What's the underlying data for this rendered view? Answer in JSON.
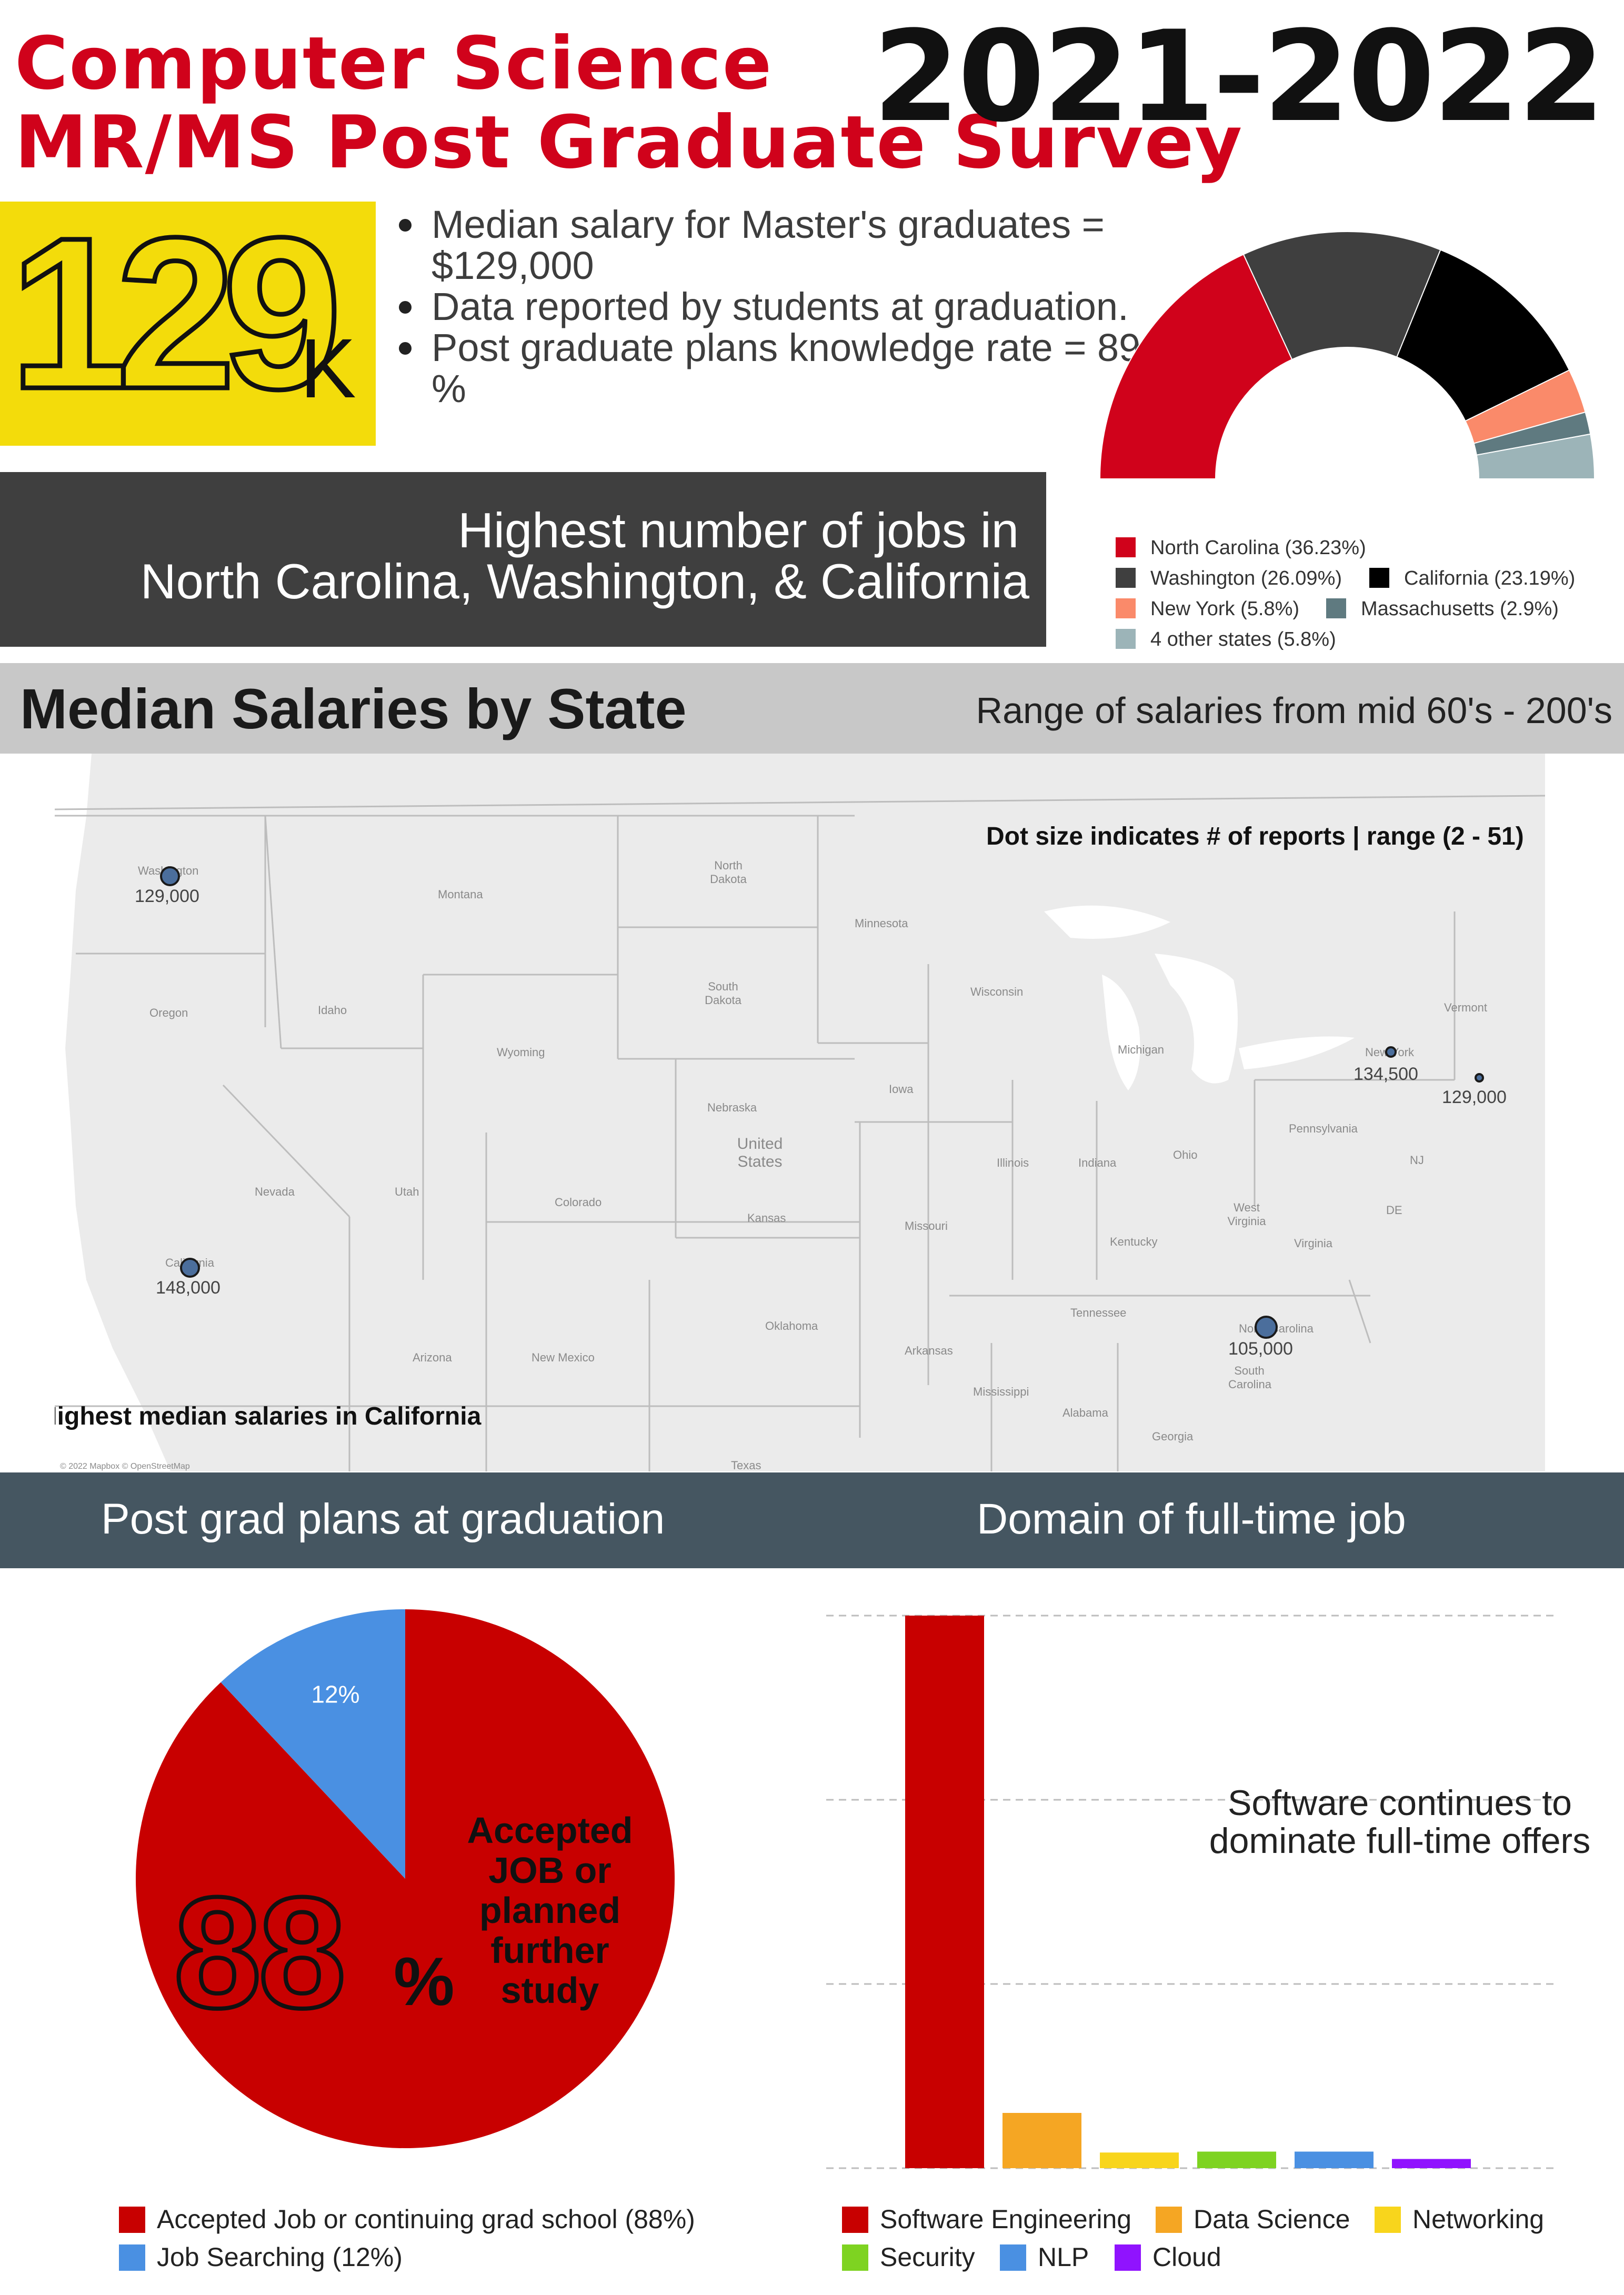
{
  "header": {
    "title_line1": "Computer Science",
    "title_line2": "MR/MS Post Graduate Survey",
    "year": "2021-2022"
  },
  "highlight": {
    "big_number": "129",
    "unit": "K",
    "bullets": [
      "Median salary for Master's graduates = $129,000",
      "Data reported by students at graduation.",
      "Post graduate plans knowledge rate = 89 %"
    ]
  },
  "jobs_box": {
    "line1": "Highest number of jobs in",
    "line2": "North Carolina, Washington, & California"
  },
  "states_chart": {
    "type": "pie",
    "style": "half-donut",
    "legend": [
      {
        "label": "North Carolina (36.23%)",
        "value": 36.23,
        "color": "#d0021b"
      },
      {
        "label": "Washington (26.09%)",
        "value": 26.09,
        "color": "#3f3f3f"
      },
      {
        "label": "California (23.19%)",
        "value": 23.19,
        "color": "#000000"
      },
      {
        "label": "New York (5.8%)",
        "value": 5.8,
        "color": "#fa8a6a"
      },
      {
        "label": "Massachusetts (2.9%)",
        "value": 2.9,
        "color": "#5f7a80"
      },
      {
        "label": "4 other states (5.8%)",
        "value": 5.8,
        "color": "#9cb4b8"
      }
    ]
  },
  "map_section": {
    "title": "Median Salaries by State",
    "subtitle": "Range of salaries from mid 60's - 200's",
    "note_top": "Dot size indicates # of reports | range (2 - 51)",
    "note_bottom": "Highest median salaries in California",
    "attribution": "© 2022 Mapbox © OpenStreetMap",
    "salaries": [
      {
        "state": "Washington",
        "label": "129,000"
      },
      {
        "state": "California",
        "label": "148,000"
      },
      {
        "state": "New York",
        "label": "134,500"
      },
      {
        "state": "Massachusetts",
        "label": "129,000"
      },
      {
        "state": "North Carolina",
        "label": "105,000"
      }
    ],
    "map_labels": {
      "washington": "Washington",
      "montana": "Montana",
      "north_dakota": "North Dakota",
      "minnesota": "Minnesota",
      "oregon": "Oregon",
      "idaho": "Idaho",
      "south_dakota": "South Dakota",
      "wisconsin": "Wisconsin",
      "michigan": "Michigan",
      "vermont": "Vermont",
      "new_york": "New York",
      "wyoming": "Wyoming",
      "iowa": "Iowa",
      "nebraska": "Nebraska",
      "united_states": "United States",
      "pennsylvania": "Pennsylvania",
      "nevada": "Nevada",
      "utah": "Utah",
      "colorado": "Colorado",
      "illinois": "Illinois",
      "indiana": "Indiana",
      "ohio": "Ohio",
      "nj": "NJ",
      "kansas": "Kansas",
      "missouri": "Missouri",
      "west_virginia": "West Virginia",
      "de": "DE",
      "california": "California",
      "kentucky": "Kentucky",
      "virginia": "Virginia",
      "tennessee": "Tennessee",
      "oklahoma": "Oklahoma",
      "arkansas": "Arkansas",
      "north_carolina": "North Carolina",
      "south_carolina": "South Carolina",
      "arizona": "Arizona",
      "new_mexico": "New Mexico",
      "mississippi": "Mississippi",
      "alabama": "Alabama",
      "georgia": "Georgia",
      "texas": "Texas"
    }
  },
  "bottom_headers": {
    "left": "Post grad plans at graduation",
    "right": "Domain of full-time job"
  },
  "chart_data": [
    {
      "type": "pie",
      "title": "Post grad plans at graduation",
      "slices": [
        {
          "label": "Accepted Job or continuing grad school (88%)",
          "value": 88,
          "data_label": "88%",
          "color": "#c80000"
        },
        {
          "label": "Job Searching (12%)",
          "value": 12,
          "data_label": "12%",
          "color": "#4a90e2"
        }
      ],
      "annotation_big": "88",
      "annotation_pct": "%",
      "annotation_text": [
        "Accepted",
        "JOB or",
        "planned",
        "further",
        "study"
      ]
    },
    {
      "type": "bar",
      "title": "Domain of full-time job",
      "categories": [
        "Software Engineering",
        "Data Science",
        "Networking",
        "Security",
        "NLP",
        "Cloud"
      ],
      "values": [
        60,
        6,
        1.7,
        1.8,
        1.8,
        1
      ],
      "colors": [
        "#c80000",
        "#f5a623",
        "#f8d51c",
        "#7ed321",
        "#4a90e2",
        "#9013fe"
      ],
      "ylim": [
        0,
        60
      ],
      "gridlines": [
        0,
        20,
        40,
        60
      ],
      "annotation": [
        "Software continues to",
        "dominate full-time offers"
      ]
    }
  ]
}
